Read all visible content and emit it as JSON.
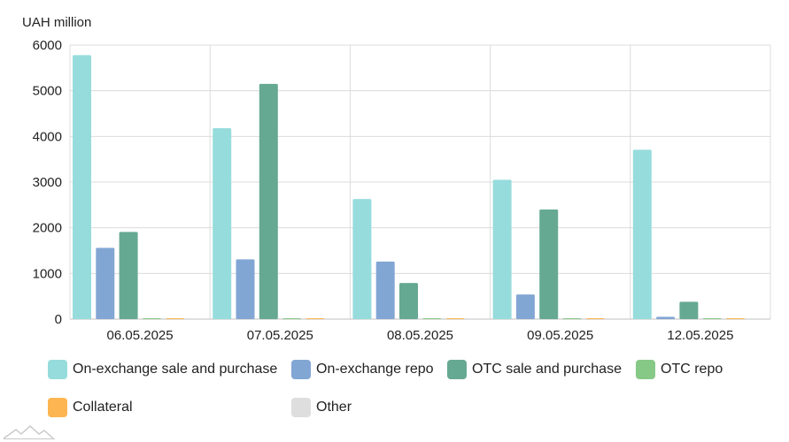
{
  "chart_data": {
    "type": "bar",
    "ylabel": "UAH million",
    "ylim": [
      0,
      6000
    ],
    "yticks": [
      0,
      1000,
      2000,
      3000,
      4000,
      5000,
      6000
    ],
    "categories": [
      "06.05.2025",
      "07.05.2025",
      "08.05.2025",
      "09.05.2025",
      "12.05.2025"
    ],
    "series": [
      {
        "name": "On-exchange sale and purchase",
        "color": "#97dcdc",
        "values": [
          5780,
          4180,
          2630,
          3050,
          3710
        ]
      },
      {
        "name": "On-exchange repo",
        "color": "#82a6d4",
        "values": [
          1560,
          1310,
          1260,
          540,
          50
        ]
      },
      {
        "name": "OTC sale and purchase",
        "color": "#66a993",
        "values": [
          1910,
          5150,
          790,
          2400,
          380
        ]
      },
      {
        "name": "OTC repo",
        "color": "#86c987",
        "values": [
          5,
          5,
          5,
          5,
          15
        ]
      },
      {
        "name": "Collateral",
        "color": "#fcb550",
        "values": [
          5,
          5,
          5,
          5,
          5
        ]
      },
      {
        "name": "Other",
        "color": "#dedede",
        "values": [
          0,
          0,
          0,
          0,
          0
        ]
      }
    ],
    "grid": true,
    "legend_position": "bottom"
  }
}
